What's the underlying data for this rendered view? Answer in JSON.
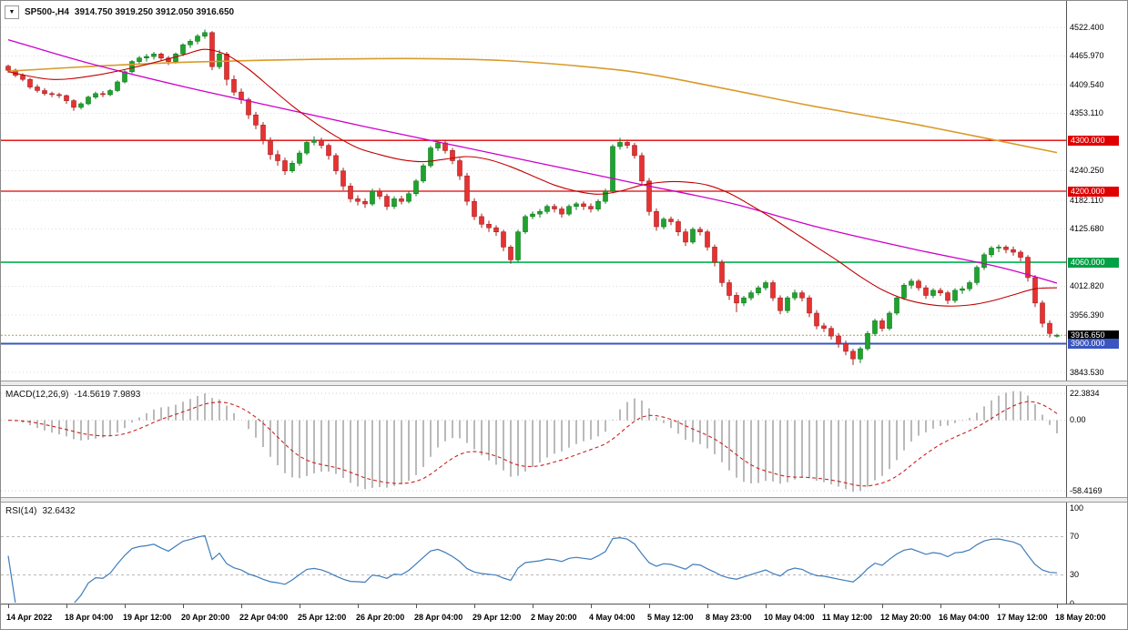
{
  "chart_data": {
    "type": "candlestick",
    "title": "SP500-,H4",
    "header": {
      "dropdown_icon": "▼",
      "symbol": "SP500-,H4",
      "ohlc_text": "3914.750 3919.250 3912.050 3916.650"
    },
    "colors": {
      "up": "#1fa32e",
      "up_border": "#0e7a1c",
      "down": "#e63232",
      "down_border": "#a51f1f",
      "grid": "#dcdcdc",
      "axis_text": "#000000"
    },
    "price_axis": {
      "anchor_top": 4522.4,
      "anchor_bottom": 3843.53,
      "labels": [
        {
          "text": "4522.400",
          "price": 4522.4
        },
        {
          "text": "4465.970",
          "price": 4465.97
        },
        {
          "text": "4409.540",
          "price": 4409.54
        },
        {
          "text": "4353.110",
          "price": 4353.11
        },
        {
          "text": "4300.000",
          "price": 4300.0,
          "bg": "#e00000"
        },
        {
          "text": "4240.250",
          "price": 4240.25
        },
        {
          "text": "4200.000",
          "price": 4200.0,
          "bg": "#e00000"
        },
        {
          "text": "4182.110",
          "price": 4182.11
        },
        {
          "text": "4125.680",
          "price": 4125.68
        },
        {
          "text": "4060.000",
          "price": 4060.0,
          "bg": "#00a046"
        },
        {
          "text": "4012.820",
          "price": 4012.82
        },
        {
          "text": "3956.390",
          "price": 3956.39
        },
        {
          "text": "3916.650",
          "price": 3916.65,
          "bg": "#000000"
        },
        {
          "text": "3900.000",
          "price": 3900.0,
          "bg": "#3a55c0"
        },
        {
          "text": "3843.530",
          "price": 3843.53
        }
      ]
    },
    "levels": [
      {
        "price": 4300,
        "color": "#e00000",
        "width": 1.3
      },
      {
        "price": 4200,
        "color": "#e00000",
        "width": 1.3
      },
      {
        "price": 4060,
        "color": "#00b050",
        "width": 1.6
      },
      {
        "price": 3900,
        "color": "#3a55c0",
        "width": 2
      }
    ],
    "price_line": {
      "price": 3916.65,
      "color": "#b89a5a"
    },
    "x_axis": {
      "step_candles": 8,
      "labels": [
        "14 Apr 2022",
        "18 Apr 04:00",
        "19 Apr 12:00",
        "20 Apr 20:00",
        "22 Apr 04:00",
        "25 Apr 12:00",
        "26 Apr 20:00",
        "28 Apr 04:00",
        "29 Apr 12:00",
        "2 May 20:00",
        "4 May 04:00",
        "5 May 12:00",
        "8 May 23:00",
        "10 May 04:00",
        "11 May 12:00",
        "12 May 20:00",
        "16 May 04:00",
        "17 May 12:00",
        "18 May 20:00"
      ]
    },
    "candles": [
      [
        4446,
        4449,
        4433,
        4438
      ],
      [
        4438,
        4441,
        4424,
        4428
      ],
      [
        4428,
        4432,
        4416,
        4420
      ],
      [
        4420,
        4423,
        4401,
        4405
      ],
      [
        4405,
        4410,
        4394,
        4398
      ],
      [
        4398,
        4403,
        4388,
        4392
      ],
      [
        4392,
        4396,
        4385,
        4390
      ],
      [
        4390,
        4394,
        4383,
        4388
      ],
      [
        4388,
        4390,
        4372,
        4378
      ],
      [
        4378,
        4381,
        4358,
        4365
      ],
      [
        4365,
        4375,
        4361,
        4372
      ],
      [
        4372,
        4388,
        4369,
        4385
      ],
      [
        4385,
        4396,
        4381,
        4392
      ],
      [
        4392,
        4397,
        4385,
        4390
      ],
      [
        4390,
        4401,
        4387,
        4398
      ],
      [
        4398,
        4418,
        4395,
        4415
      ],
      [
        4415,
        4438,
        4412,
        4435
      ],
      [
        4435,
        4458,
        4432,
        4455
      ],
      [
        4455,
        4466,
        4450,
        4462
      ],
      [
        4462,
        4470,
        4455,
        4465
      ],
      [
        4465,
        4474,
        4459,
        4470
      ],
      [
        4470,
        4473,
        4456,
        4462
      ],
      [
        4462,
        4466,
        4448,
        4455
      ],
      [
        4455,
        4473,
        4451,
        4470
      ],
      [
        4470,
        4491,
        4466,
        4488
      ],
      [
        4488,
        4499,
        4482,
        4495
      ],
      [
        4495,
        4509,
        4489,
        4505
      ],
      [
        4505,
        4518,
        4500,
        4512
      ],
      [
        4512,
        4515,
        4438,
        4445
      ],
      [
        4445,
        4478,
        4440,
        4470
      ],
      [
        4470,
        4474,
        4408,
        4420
      ],
      [
        4420,
        4428,
        4388,
        4395
      ],
      [
        4395,
        4402,
        4372,
        4380
      ],
      [
        4380,
        4384,
        4342,
        4350
      ],
      [
        4350,
        4356,
        4322,
        4330
      ],
      [
        4330,
        4336,
        4292,
        4300
      ],
      [
        4300,
        4306,
        4262,
        4272
      ],
      [
        4272,
        4280,
        4250,
        4260
      ],
      [
        4260,
        4266,
        4232,
        4240
      ],
      [
        4240,
        4260,
        4236,
        4255
      ],
      [
        4255,
        4280,
        4250,
        4275
      ],
      [
        4275,
        4300,
        4271,
        4296
      ],
      [
        4296,
        4308,
        4290,
        4300
      ],
      [
        4300,
        4305,
        4284,
        4290
      ],
      [
        4290,
        4294,
        4262,
        4270
      ],
      [
        4270,
        4275,
        4233,
        4240
      ],
      [
        4240,
        4246,
        4202,
        4210
      ],
      [
        4210,
        4216,
        4178,
        4185
      ],
      [
        4185,
        4192,
        4172,
        4180
      ],
      [
        4180,
        4186,
        4167,
        4175
      ],
      [
        4175,
        4205,
        4171,
        4200
      ],
      [
        4200,
        4206,
        4184,
        4190
      ],
      [
        4190,
        4195,
        4163,
        4170
      ],
      [
        4170,
        4190,
        4165,
        4185
      ],
      [
        4185,
        4191,
        4174,
        4180
      ],
      [
        4180,
        4199,
        4176,
        4195
      ],
      [
        4195,
        4224,
        4190,
        4220
      ],
      [
        4220,
        4254,
        4216,
        4250
      ],
      [
        4250,
        4289,
        4246,
        4285
      ],
      [
        4285,
        4299,
        4279,
        4295
      ],
      [
        4295,
        4300,
        4274,
        4280
      ],
      [
        4280,
        4285,
        4253,
        4260
      ],
      [
        4260,
        4265,
        4222,
        4230
      ],
      [
        4230,
        4236,
        4172,
        4180
      ],
      [
        4180,
        4186,
        4143,
        4150
      ],
      [
        4150,
        4156,
        4128,
        4135
      ],
      [
        4135,
        4142,
        4120,
        4128
      ],
      [
        4128,
        4133,
        4112,
        4120
      ],
      [
        4120,
        4124,
        4082,
        4090
      ],
      [
        4090,
        4094,
        4057,
        4065
      ],
      [
        4065,
        4124,
        4061,
        4120
      ],
      [
        4120,
        4154,
        4116,
        4150
      ],
      [
        4150,
        4160,
        4145,
        4155
      ],
      [
        4155,
        4165,
        4148,
        4160
      ],
      [
        4160,
        4174,
        4155,
        4170
      ],
      [
        4170,
        4175,
        4158,
        4165
      ],
      [
        4165,
        4170,
        4148,
        4155
      ],
      [
        4155,
        4174,
        4151,
        4170
      ],
      [
        4170,
        4179,
        4163,
        4175
      ],
      [
        4175,
        4180,
        4163,
        4170
      ],
      [
        4170,
        4176,
        4158,
        4165
      ],
      [
        4165,
        4184,
        4160,
        4180
      ],
      [
        4180,
        4205,
        4175,
        4200
      ],
      [
        4200,
        4292,
        4196,
        4288
      ],
      [
        4288,
        4305,
        4282,
        4296
      ],
      [
        4296,
        4301,
        4284,
        4290
      ],
      [
        4290,
        4295,
        4264,
        4270
      ],
      [
        4270,
        4276,
        4212,
        4220
      ],
      [
        4220,
        4226,
        4152,
        4160
      ],
      [
        4160,
        4166,
        4122,
        4130
      ],
      [
        4130,
        4149,
        4125,
        4145
      ],
      [
        4145,
        4150,
        4133,
        4140
      ],
      [
        4140,
        4145,
        4112,
        4120
      ],
      [
        4120,
        4126,
        4092,
        4100
      ],
      [
        4100,
        4129,
        4096,
        4125
      ],
      [
        4125,
        4130,
        4113,
        4120
      ],
      [
        4120,
        4124,
        4083,
        4090
      ],
      [
        4090,
        4095,
        4052,
        4060
      ],
      [
        4060,
        4065,
        4012,
        4020
      ],
      [
        4020,
        4026,
        3986,
        3995
      ],
      [
        3995,
        4001,
        3962,
        3980
      ],
      [
        3980,
        3994,
        3974,
        3990
      ],
      [
        3990,
        4005,
        3985,
        4000
      ],
      [
        4000,
        4014,
        3995,
        4010
      ],
      [
        4010,
        4024,
        4005,
        4020
      ],
      [
        4020,
        4025,
        3984,
        3990
      ],
      [
        3990,
        3995,
        3958,
        3965
      ],
      [
        3965,
        3994,
        3960,
        3990
      ],
      [
        3990,
        4006,
        3985,
        4000
      ],
      [
        4000,
        4005,
        3983,
        3990
      ],
      [
        3990,
        3995,
        3952,
        3960
      ],
      [
        3960,
        3966,
        3928,
        3935
      ],
      [
        3935,
        3941,
        3923,
        3930
      ],
      [
        3930,
        3935,
        3908,
        3915
      ],
      [
        3915,
        3921,
        3892,
        3900
      ],
      [
        3900,
        3906,
        3877,
        3885
      ],
      [
        3885,
        3890,
        3858,
        3870
      ],
      [
        3870,
        3894,
        3862,
        3890
      ],
      [
        3890,
        3925,
        3886,
        3920
      ],
      [
        3920,
        3949,
        3915,
        3945
      ],
      [
        3945,
        3950,
        3924,
        3930
      ],
      [
        3930,
        3964,
        3926,
        3960
      ],
      [
        3960,
        3994,
        3956,
        3990
      ],
      [
        3990,
        4019,
        3986,
        4015
      ],
      [
        4015,
        4028,
        4008,
        4023
      ],
      [
        4023,
        4027,
        4004,
        4010
      ],
      [
        4010,
        4015,
        3988,
        3995
      ],
      [
        3995,
        4009,
        3990,
        4005
      ],
      [
        4005,
        4010,
        3994,
        4000
      ],
      [
        4000,
        4004,
        3978,
        3985
      ],
      [
        3985,
        4009,
        3980,
        4005
      ],
      [
        4005,
        4013,
        3998,
        4008
      ],
      [
        4008,
        4024,
        4003,
        4020
      ],
      [
        4020,
        4054,
        4015,
        4050
      ],
      [
        4050,
        4079,
        4045,
        4075
      ],
      [
        4075,
        4092,
        4070,
        4088
      ],
      [
        4088,
        4095,
        4080,
        4090
      ],
      [
        4090,
        4094,
        4078,
        4085
      ],
      [
        4085,
        4091,
        4073,
        4080
      ],
      [
        4080,
        4084,
        4062,
        4070
      ],
      [
        4070,
        4074,
        4022,
        4030
      ],
      [
        4030,
        4035,
        3972,
        3980
      ],
      [
        3980,
        3985,
        3932,
        3940
      ],
      [
        3940,
        3946,
        3912,
        3920
      ],
      [
        3914.75,
        3919.25,
        3912.05,
        3916.65
      ]
    ],
    "overlays": [
      {
        "name": "ma-slow-orange",
        "color": "#d99b2b",
        "width": 1.6,
        "points": [
          [
            0,
            4436
          ],
          [
            12,
            4446
          ],
          [
            25,
            4454
          ],
          [
            40,
            4459
          ],
          [
            55,
            4461
          ],
          [
            68,
            4457
          ],
          [
            80,
            4444
          ],
          [
            88,
            4430
          ],
          [
            99,
            4400
          ],
          [
            111,
            4366
          ],
          [
            124,
            4333
          ],
          [
            136,
            4299
          ],
          [
            144,
            4276
          ]
        ]
      },
      {
        "name": "ma-medium-magenta",
        "color": "#cc00cc",
        "width": 1.3,
        "points": [
          [
            0,
            4498
          ],
          [
            11,
            4452
          ],
          [
            24,
            4406
          ],
          [
            36,
            4368
          ],
          [
            49,
            4327
          ],
          [
            61,
            4291
          ],
          [
            74,
            4252
          ],
          [
            86,
            4216
          ],
          [
            99,
            4177
          ],
          [
            111,
            4130
          ],
          [
            124,
            4087
          ],
          [
            136,
            4051
          ],
          [
            144,
            4019
          ]
        ]
      },
      {
        "name": "ma-fast-red",
        "color": "#c00000",
        "width": 1.1,
        "points": [
          [
            0,
            4435
          ],
          [
            6,
            4420
          ],
          [
            12,
            4428
          ],
          [
            18,
            4446
          ],
          [
            24,
            4468
          ],
          [
            27,
            4479
          ],
          [
            30,
            4468
          ],
          [
            33,
            4440
          ],
          [
            36,
            4404
          ],
          [
            39,
            4368
          ],
          [
            42,
            4336
          ],
          [
            45,
            4308
          ],
          [
            48,
            4285
          ],
          [
            51,
            4272
          ],
          [
            54,
            4262
          ],
          [
            57,
            4258
          ],
          [
            60,
            4263
          ],
          [
            63,
            4268
          ],
          [
            66,
            4262
          ],
          [
            69,
            4248
          ],
          [
            72,
            4230
          ],
          [
            75,
            4212
          ],
          [
            78,
            4200
          ],
          [
            81,
            4194
          ],
          [
            84,
            4200
          ],
          [
            87,
            4212
          ],
          [
            90,
            4218
          ],
          [
            93,
            4218
          ],
          [
            96,
            4212
          ],
          [
            99,
            4196
          ],
          [
            102,
            4172
          ],
          [
            105,
            4146
          ],
          [
            108,
            4118
          ],
          [
            111,
            4090
          ],
          [
            114,
            4062
          ],
          [
            117,
            4032
          ],
          [
            120,
            4006
          ],
          [
            123,
            3988
          ],
          [
            126,
            3978
          ],
          [
            129,
            3974
          ],
          [
            132,
            3976
          ],
          [
            135,
            3984
          ],
          [
            138,
            3996
          ],
          [
            141,
            4008
          ],
          [
            144,
            4010
          ]
        ]
      }
    ],
    "indicators": {
      "macd": {
        "name_text": "MACD(12,26,9)",
        "values_text": "-14.5619 7.9893",
        "fast": 12,
        "slow": 26,
        "signal": 9,
        "histogram_color": "#a8a8a8",
        "signal_color": "#cc2222",
        "axis": {
          "max": 22.3834,
          "min": -58.4169,
          "labels": [
            {
              "text": "22.3834",
              "value": 22.3834
            },
            {
              "text": "0.00",
              "value": 0
            },
            {
              "text": "-58.4169",
              "value": -58.4169
            }
          ]
        }
      },
      "rsi": {
        "name_text": "RSI(14)",
        "value_text": "32.6432",
        "period": 14,
        "line_color": "#3f7cba",
        "levels": [
          70,
          30
        ],
        "axis": {
          "max": 100,
          "min": 0,
          "labels": [
            {
              "text": "100",
              "value": 100
            },
            {
              "text": "70",
              "value": 70
            },
            {
              "text": "30",
              "value": 30
            },
            {
              "text": "0",
              "value": 0
            }
          ]
        }
      }
    }
  }
}
